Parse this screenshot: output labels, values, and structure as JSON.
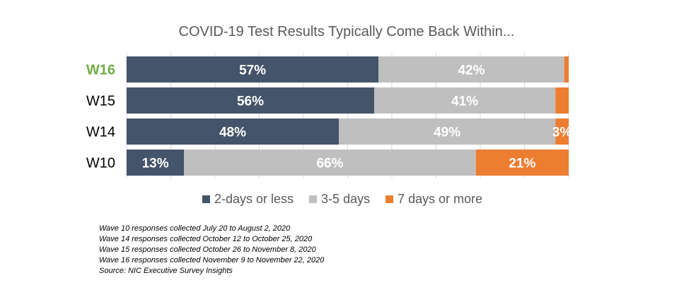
{
  "chart_data": {
    "type": "bar",
    "orientation": "horizontal",
    "stacked": true,
    "percent_stacked": true,
    "title": "COVID-19 Test Results Typically Come Back Within...",
    "categories": [
      "W16",
      "W15",
      "W14",
      "W10"
    ],
    "category_colors": [
      "#70ad47",
      "#000000",
      "#000000",
      "#000000"
    ],
    "series": [
      {
        "name": "2-days or less",
        "color": "#44546a",
        "values": [
          57,
          56,
          48,
          13
        ],
        "labels": [
          "57%",
          "56%",
          "48%",
          "13%"
        ]
      },
      {
        "name": "3-5 days",
        "color": "#bfbfbf",
        "values": [
          42,
          41,
          49,
          66
        ],
        "labels": [
          "42%",
          "41%",
          "49%",
          "66%"
        ]
      },
      {
        "name": "7 days or more",
        "color": "#ed7d31",
        "values": [
          1,
          3,
          3,
          21
        ],
        "labels": [
          "",
          "",
          "3%",
          "21%"
        ]
      }
    ],
    "xlim": [
      0,
      100
    ],
    "grid": true,
    "legend_position": "bottom"
  },
  "notes": [
    "Wave 10 responses collected July 20 to August 2, 2020",
    "Wave 14 responses collected October 12 to October 25, 2020",
    "Wave 15 responses collected October 26 to November 8, 2020",
    "Wave 16 responses collected November 9 to November 22, 2020",
    "Source: NIC Executive Survey Insights"
  ],
  "colors": {
    "title_text": "#595959",
    "gridline": "#d9d9d9",
    "bar_label_text": "#ffffff"
  }
}
